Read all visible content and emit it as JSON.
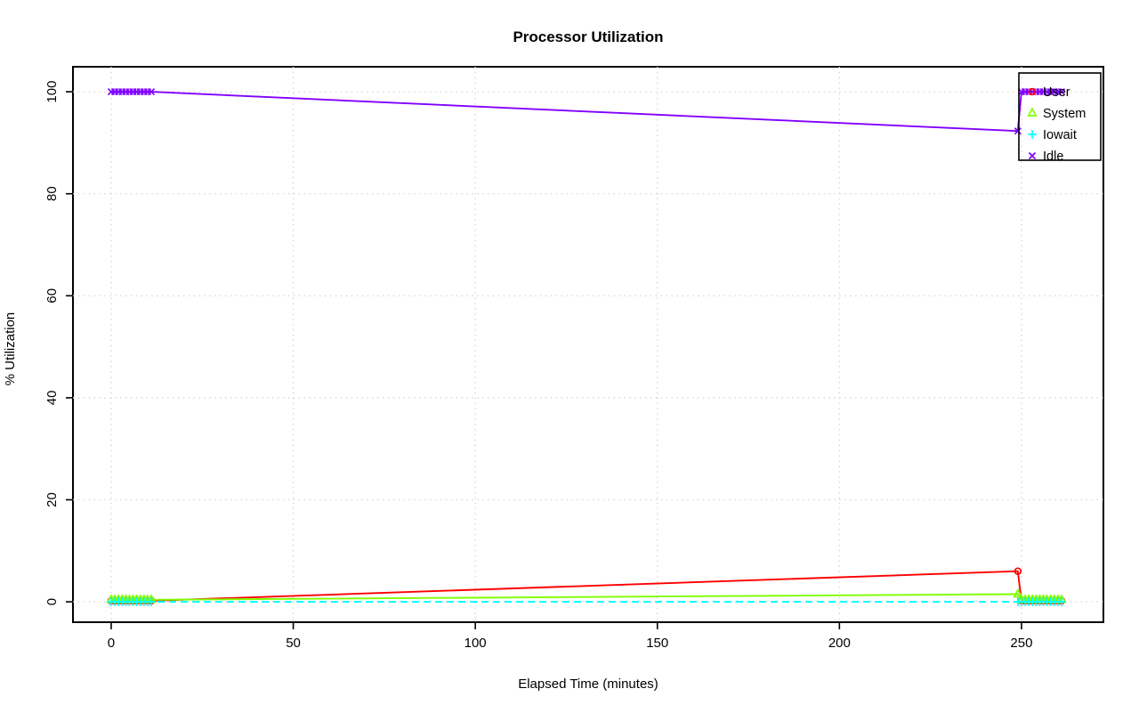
{
  "chart_data": {
    "type": "line",
    "title": "Processor Utilization",
    "xlabel": "Elapsed Time (minutes)",
    "ylabel": "% Utilization",
    "xticks": [
      0,
      50,
      100,
      150,
      200,
      250
    ],
    "yticks": [
      0,
      20,
      40,
      60,
      80,
      100
    ],
    "xlim": [
      -10.5,
      272.5
    ],
    "ylim": [
      -4,
      104.9
    ],
    "grid": "dotted",
    "grid_color": "#d3d3d3",
    "plot_border_color": "#000000",
    "legend_position": "top-right",
    "x": [
      0,
      1,
      2,
      3,
      4,
      5,
      6,
      7,
      8,
      9,
      10,
      11,
      249,
      250,
      251,
      252,
      253,
      254,
      255,
      256,
      257,
      258,
      259,
      260,
      261
    ],
    "series": [
      {
        "name": "User",
        "color": "#FF0000",
        "marker": "circle",
        "linestyle": "solid",
        "values": [
          0.2,
          0.2,
          0.2,
          0.2,
          0.2,
          0.2,
          0.2,
          0.2,
          0.2,
          0.2,
          0.2,
          0.2,
          6,
          0.2,
          0.2,
          0.2,
          0.2,
          0.2,
          0.2,
          0.2,
          0.2,
          0.2,
          0.2,
          0.2,
          0.2
        ]
      },
      {
        "name": "System",
        "color": "#80FF00",
        "marker": "triangle",
        "linestyle": "solid",
        "values": [
          0.4,
          0.4,
          0.4,
          0.4,
          0.4,
          0.4,
          0.4,
          0.4,
          0.4,
          0.4,
          0.4,
          0.4,
          1.5,
          0.4,
          0.4,
          0.4,
          0.4,
          0.4,
          0.4,
          0.4,
          0.4,
          0.4,
          0.4,
          0.4,
          0.4
        ]
      },
      {
        "name": "Iowait",
        "color": "#00FFFF",
        "marker": "plus",
        "linestyle": "dashed",
        "values": [
          0,
          0,
          0,
          0,
          0,
          0,
          0,
          0,
          0,
          0,
          0,
          0,
          0,
          0,
          0,
          0,
          0,
          0,
          0,
          0,
          0,
          0,
          0,
          0,
          0
        ]
      },
      {
        "name": "Idle",
        "color": "#8000FF",
        "marker": "x",
        "linestyle": "solid",
        "values": [
          100,
          100,
          100,
          100,
          100,
          100,
          100,
          100,
          100,
          100,
          100,
          100,
          92.3,
          100,
          100,
          100,
          100,
          100,
          100,
          100,
          100,
          100,
          100,
          100,
          100
        ]
      }
    ]
  }
}
